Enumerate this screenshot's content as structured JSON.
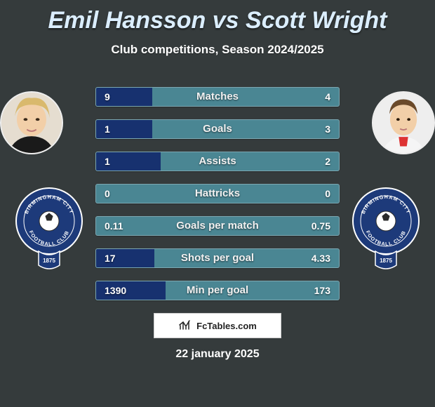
{
  "title": "Emil Hansson vs Scott Wright",
  "subtitle": "Club competitions, Season 2024/2025",
  "date": "22 january 2025",
  "footer_brand": "FcTables.com",
  "colors": {
    "background": "#353b3c",
    "bar_base": "#4a8693",
    "bar_fill": "#17316f",
    "title_color": "#dbeeff"
  },
  "players": {
    "left": {
      "name": "Emil Hansson",
      "club": "Birmingham City Football Club"
    },
    "right": {
      "name": "Scott Wright",
      "club": "Birmingham City Football Club"
    }
  },
  "stats": [
    {
      "label": "Matches",
      "left_val": "9",
      "right_val": "4",
      "left_pct": 23,
      "right_pct": 0
    },
    {
      "label": "Goals",
      "left_val": "1",
      "right_val": "3",
      "left_pct": 23,
      "right_pct": 0
    },
    {
      "label": "Assists",
      "left_val": "1",
      "right_val": "2",
      "left_pct": 26.5,
      "right_pct": 0
    },
    {
      "label": "Hattricks",
      "left_val": "0",
      "right_val": "0",
      "left_pct": 0,
      "right_pct": 0
    },
    {
      "label": "Goals per match",
      "left_val": "0.11",
      "right_val": "0.75",
      "left_pct": 0,
      "right_pct": 0
    },
    {
      "label": "Shots per goal",
      "left_val": "17",
      "right_val": "4.33",
      "left_pct": 24,
      "right_pct": 0
    },
    {
      "label": "Min per goal",
      "left_val": "1390",
      "right_val": "173",
      "left_pct": 28.5,
      "right_pct": 0
    }
  ]
}
